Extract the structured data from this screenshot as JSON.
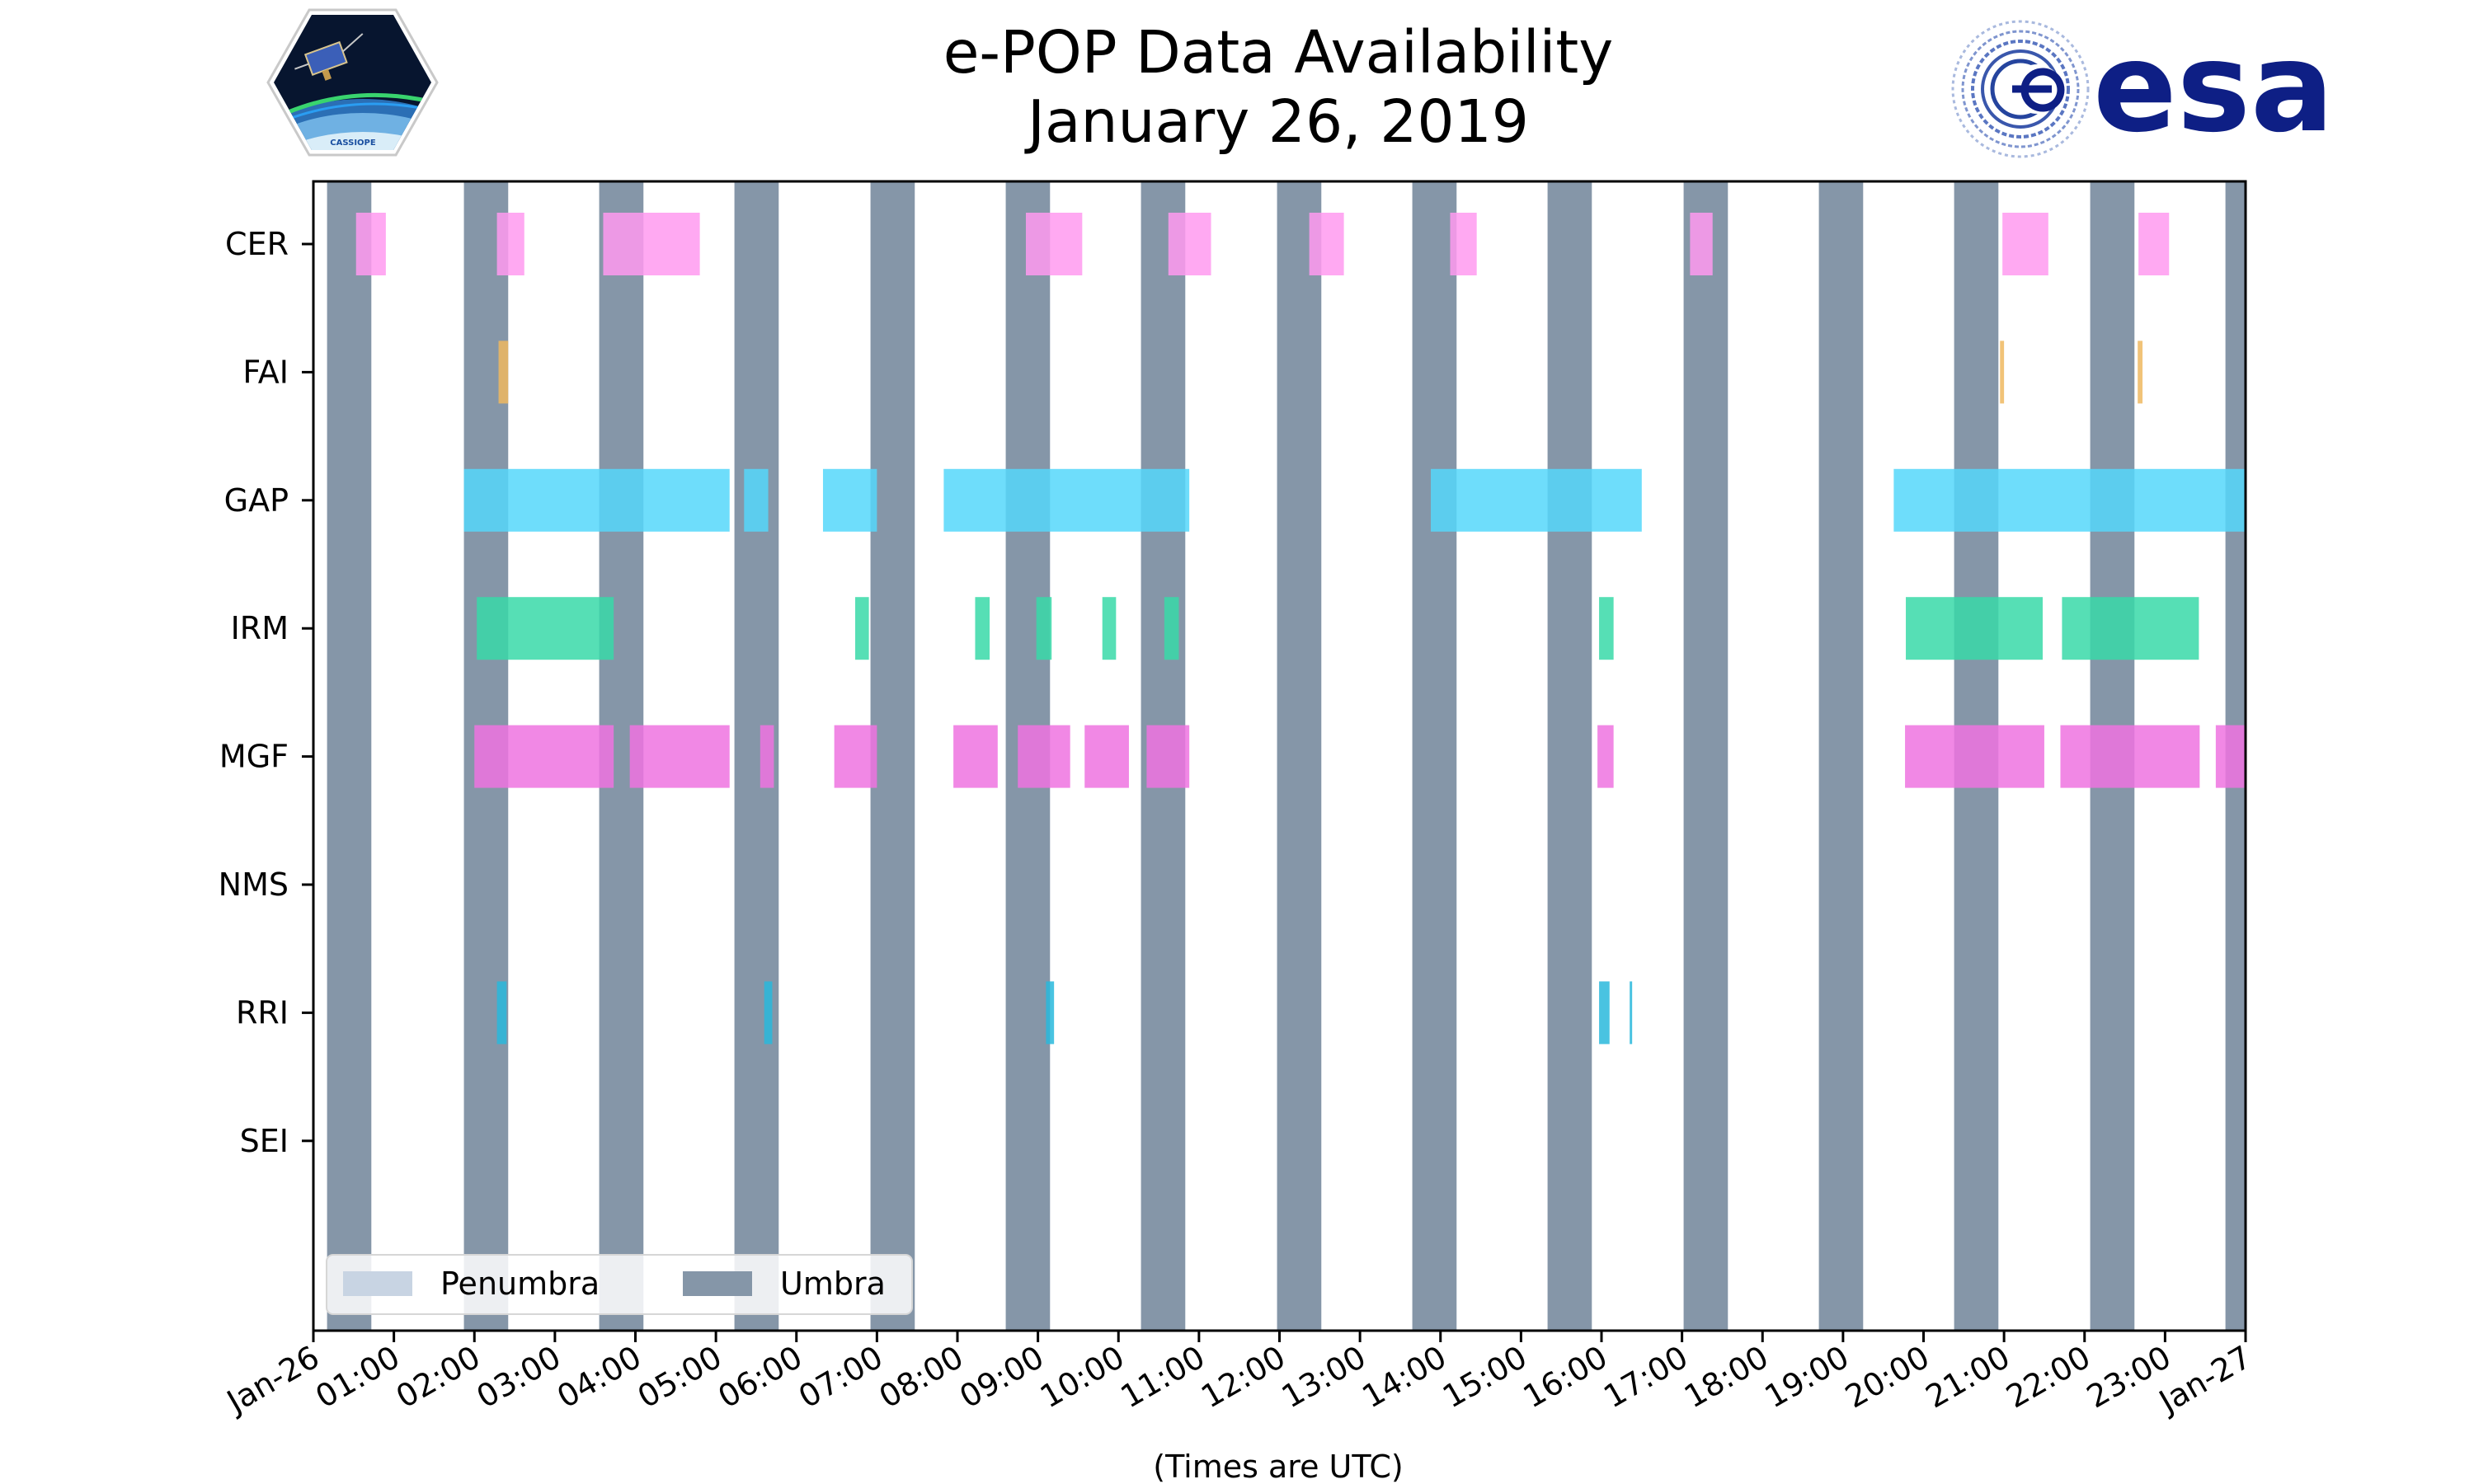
{
  "logos": {
    "left_text": "CASSIOPE",
    "right_text": "esa"
  },
  "colors": {
    "umbra": "#8596a8",
    "penumbra": "#c8d4e3",
    "CER": "#ff9af0",
    "FAI": "#eeb860",
    "GAP": "#55d7fa",
    "IRM": "#38d9a8",
    "MGF": "#ef73e0",
    "RRI": "#29b9dc",
    "esa_blue": "#0e1f85"
  },
  "chart_data": {
    "type": "timeline",
    "title": "e-POP Data Availability",
    "subtitle": "January 26, 2019",
    "xlabel": "(Times are UTC)",
    "ylabel": "",
    "xlim_hours": [
      0,
      24
    ],
    "instruments": [
      "CER",
      "FAI",
      "GAP",
      "IRM",
      "MGF",
      "NMS",
      "RRI",
      "SEI"
    ],
    "x_tick_labels": [
      "Jan-26",
      "01:00",
      "02:00",
      "03:00",
      "04:00",
      "05:00",
      "06:00",
      "07:00",
      "08:00",
      "09:00",
      "10:00",
      "11:00",
      "12:00",
      "13:00",
      "14:00",
      "15:00",
      "16:00",
      "17:00",
      "18:00",
      "19:00",
      "20:00",
      "21:00",
      "22:00",
      "23:00",
      "Jan-27"
    ],
    "legend": [
      {
        "label": "Penumbra",
        "key": "penumbra"
      },
      {
        "label": "Umbra",
        "key": "umbra"
      }
    ],
    "legend_position": "lower-left",
    "umbra_intervals": [
      [
        0.17,
        0.72
      ],
      [
        1.87,
        2.42
      ],
      [
        3.55,
        4.1
      ],
      [
        5.23,
        5.78
      ],
      [
        6.92,
        7.47
      ],
      [
        8.6,
        9.15
      ],
      [
        10.28,
        10.83
      ],
      [
        11.97,
        12.52
      ],
      [
        13.65,
        14.2
      ],
      [
        15.33,
        15.88
      ],
      [
        17.02,
        17.57
      ],
      [
        18.7,
        19.25
      ],
      [
        20.38,
        20.93
      ],
      [
        22.07,
        22.62
      ],
      [
        23.75,
        24.0
      ]
    ],
    "penumbra_intervals": [],
    "segments": {
      "CER": [
        [
          0.53,
          0.9
        ],
        [
          2.28,
          2.62
        ],
        [
          3.6,
          4.8
        ],
        [
          8.85,
          9.55
        ],
        [
          10.62,
          11.15
        ],
        [
          12.37,
          12.8
        ],
        [
          14.12,
          14.45
        ],
        [
          17.1,
          17.38
        ],
        [
          20.98,
          21.55
        ],
        [
          22.67,
          23.05
        ]
      ],
      "FAI": [
        [
          2.3,
          2.42
        ],
        [
          20.95,
          21.0
        ],
        [
          22.66,
          22.72
        ]
      ],
      "GAP": [
        [
          1.87,
          5.17
        ],
        [
          5.35,
          5.65
        ],
        [
          6.33,
          7.0
        ],
        [
          7.83,
          10.88
        ],
        [
          13.88,
          16.5
        ],
        [
          19.63,
          24.0
        ]
      ],
      "IRM": [
        [
          2.03,
          3.73
        ],
        [
          6.73,
          6.9
        ],
        [
          8.22,
          8.4
        ],
        [
          8.98,
          9.17
        ],
        [
          9.8,
          9.97
        ],
        [
          10.57,
          10.75
        ],
        [
          15.97,
          16.15
        ],
        [
          19.78,
          21.48
        ],
        [
          21.72,
          23.42
        ]
      ],
      "MGF": [
        [
          2.0,
          3.73
        ],
        [
          3.93,
          5.17
        ],
        [
          5.55,
          5.72
        ],
        [
          6.47,
          7.0
        ],
        [
          7.95,
          8.5
        ],
        [
          8.75,
          9.4
        ],
        [
          9.58,
          10.13
        ],
        [
          10.35,
          10.88
        ],
        [
          15.95,
          16.15
        ],
        [
          19.77,
          21.5
        ],
        [
          21.7,
          23.43
        ],
        [
          23.63,
          24.0
        ]
      ],
      "NMS": [],
      "RRI": [
        [
          2.28,
          2.4
        ],
        [
          5.6,
          5.7
        ],
        [
          9.1,
          9.2
        ],
        [
          15.97,
          16.1
        ],
        [
          16.35,
          16.38
        ]
      ],
      "SEI": []
    }
  }
}
